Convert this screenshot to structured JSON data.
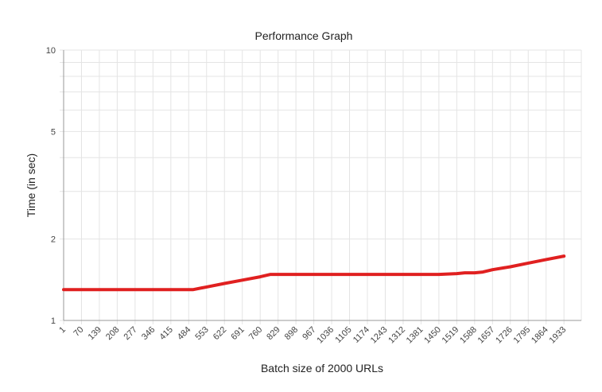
{
  "chart_data": {
    "type": "line",
    "title": "Performance Graph",
    "xlabel": "Batch size of 2000 URLs",
    "ylabel": "Time (in sec)",
    "y_scale": "log",
    "ylim": [
      1,
      10
    ],
    "y_ticks": [
      1,
      2,
      5,
      10
    ],
    "y_minor_ticks": [
      3,
      4,
      6,
      7,
      8,
      9
    ],
    "grid": true,
    "legend": "none",
    "x_ticks": [
      1,
      70,
      139,
      208,
      277,
      346,
      415,
      484,
      553,
      622,
      691,
      760,
      829,
      898,
      967,
      1036,
      1105,
      1174,
      1243,
      1312,
      1381,
      1450,
      1519,
      1588,
      1657,
      1726,
      1795,
      1864,
      1933
    ],
    "xlim": [
      1,
      2000
    ],
    "series": [
      {
        "color": "#e02020",
        "x": [
          1,
          70,
          139,
          208,
          277,
          346,
          415,
          484,
          500,
          553,
          622,
          691,
          760,
          800,
          829,
          898,
          967,
          1036,
          1105,
          1174,
          1243,
          1312,
          1381,
          1450,
          1519,
          1550,
          1588,
          1620,
          1657,
          1726,
          1795,
          1864,
          1933
        ],
        "y": [
          1.3,
          1.3,
          1.3,
          1.3,
          1.3,
          1.3,
          1.3,
          1.3,
          1.3,
          1.33,
          1.37,
          1.41,
          1.45,
          1.48,
          1.48,
          1.48,
          1.48,
          1.48,
          1.48,
          1.48,
          1.48,
          1.48,
          1.48,
          1.48,
          1.49,
          1.5,
          1.5,
          1.51,
          1.54,
          1.58,
          1.63,
          1.68,
          1.73
        ]
      }
    ]
  }
}
